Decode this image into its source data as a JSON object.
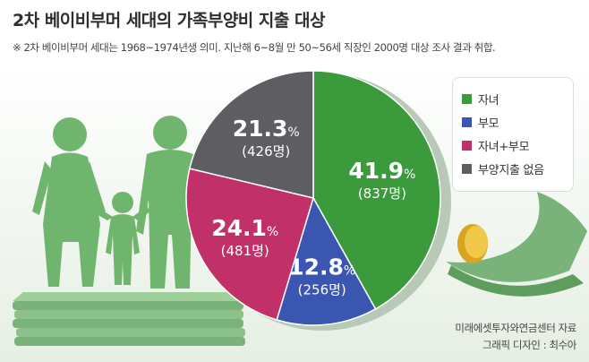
{
  "title": "2차 베이비부머 세대의 가족부양비 지출 대상",
  "subtitle": "※ 2차 베이비부머 세대는 1968~1974년생 의미. 지난해 6~8월 만 50~56세 직장인 2000명 대상 조사 결과 취합.",
  "source": "미래에셋투자와연금센터 자료",
  "credit": "그래픽 디자인 : 최수아",
  "chart_data": {
    "type": "pie",
    "title": "2차 베이비부머 세대의 가족부양비 지출 대상",
    "legend_position": "right",
    "slices": [
      {
        "label": "자녀",
        "value": 41.9,
        "value_text": "41.9",
        "count_text": "(837명)",
        "color": "#3a9a3c"
      },
      {
        "label": "부모",
        "value": 12.8,
        "value_text": "12.8",
        "count_text": "(256명)",
        "color": "#3a56b0"
      },
      {
        "label": "자녀+부모",
        "value": 24.1,
        "value_text": "24.1",
        "count_text": "(481명)",
        "color": "#c2306a"
      },
      {
        "label": "부양지출 없음",
        "value": 21.3,
        "value_text": "21.3",
        "count_text": "(426명)",
        "color": "#5e5e62"
      }
    ],
    "unit": "%"
  }
}
